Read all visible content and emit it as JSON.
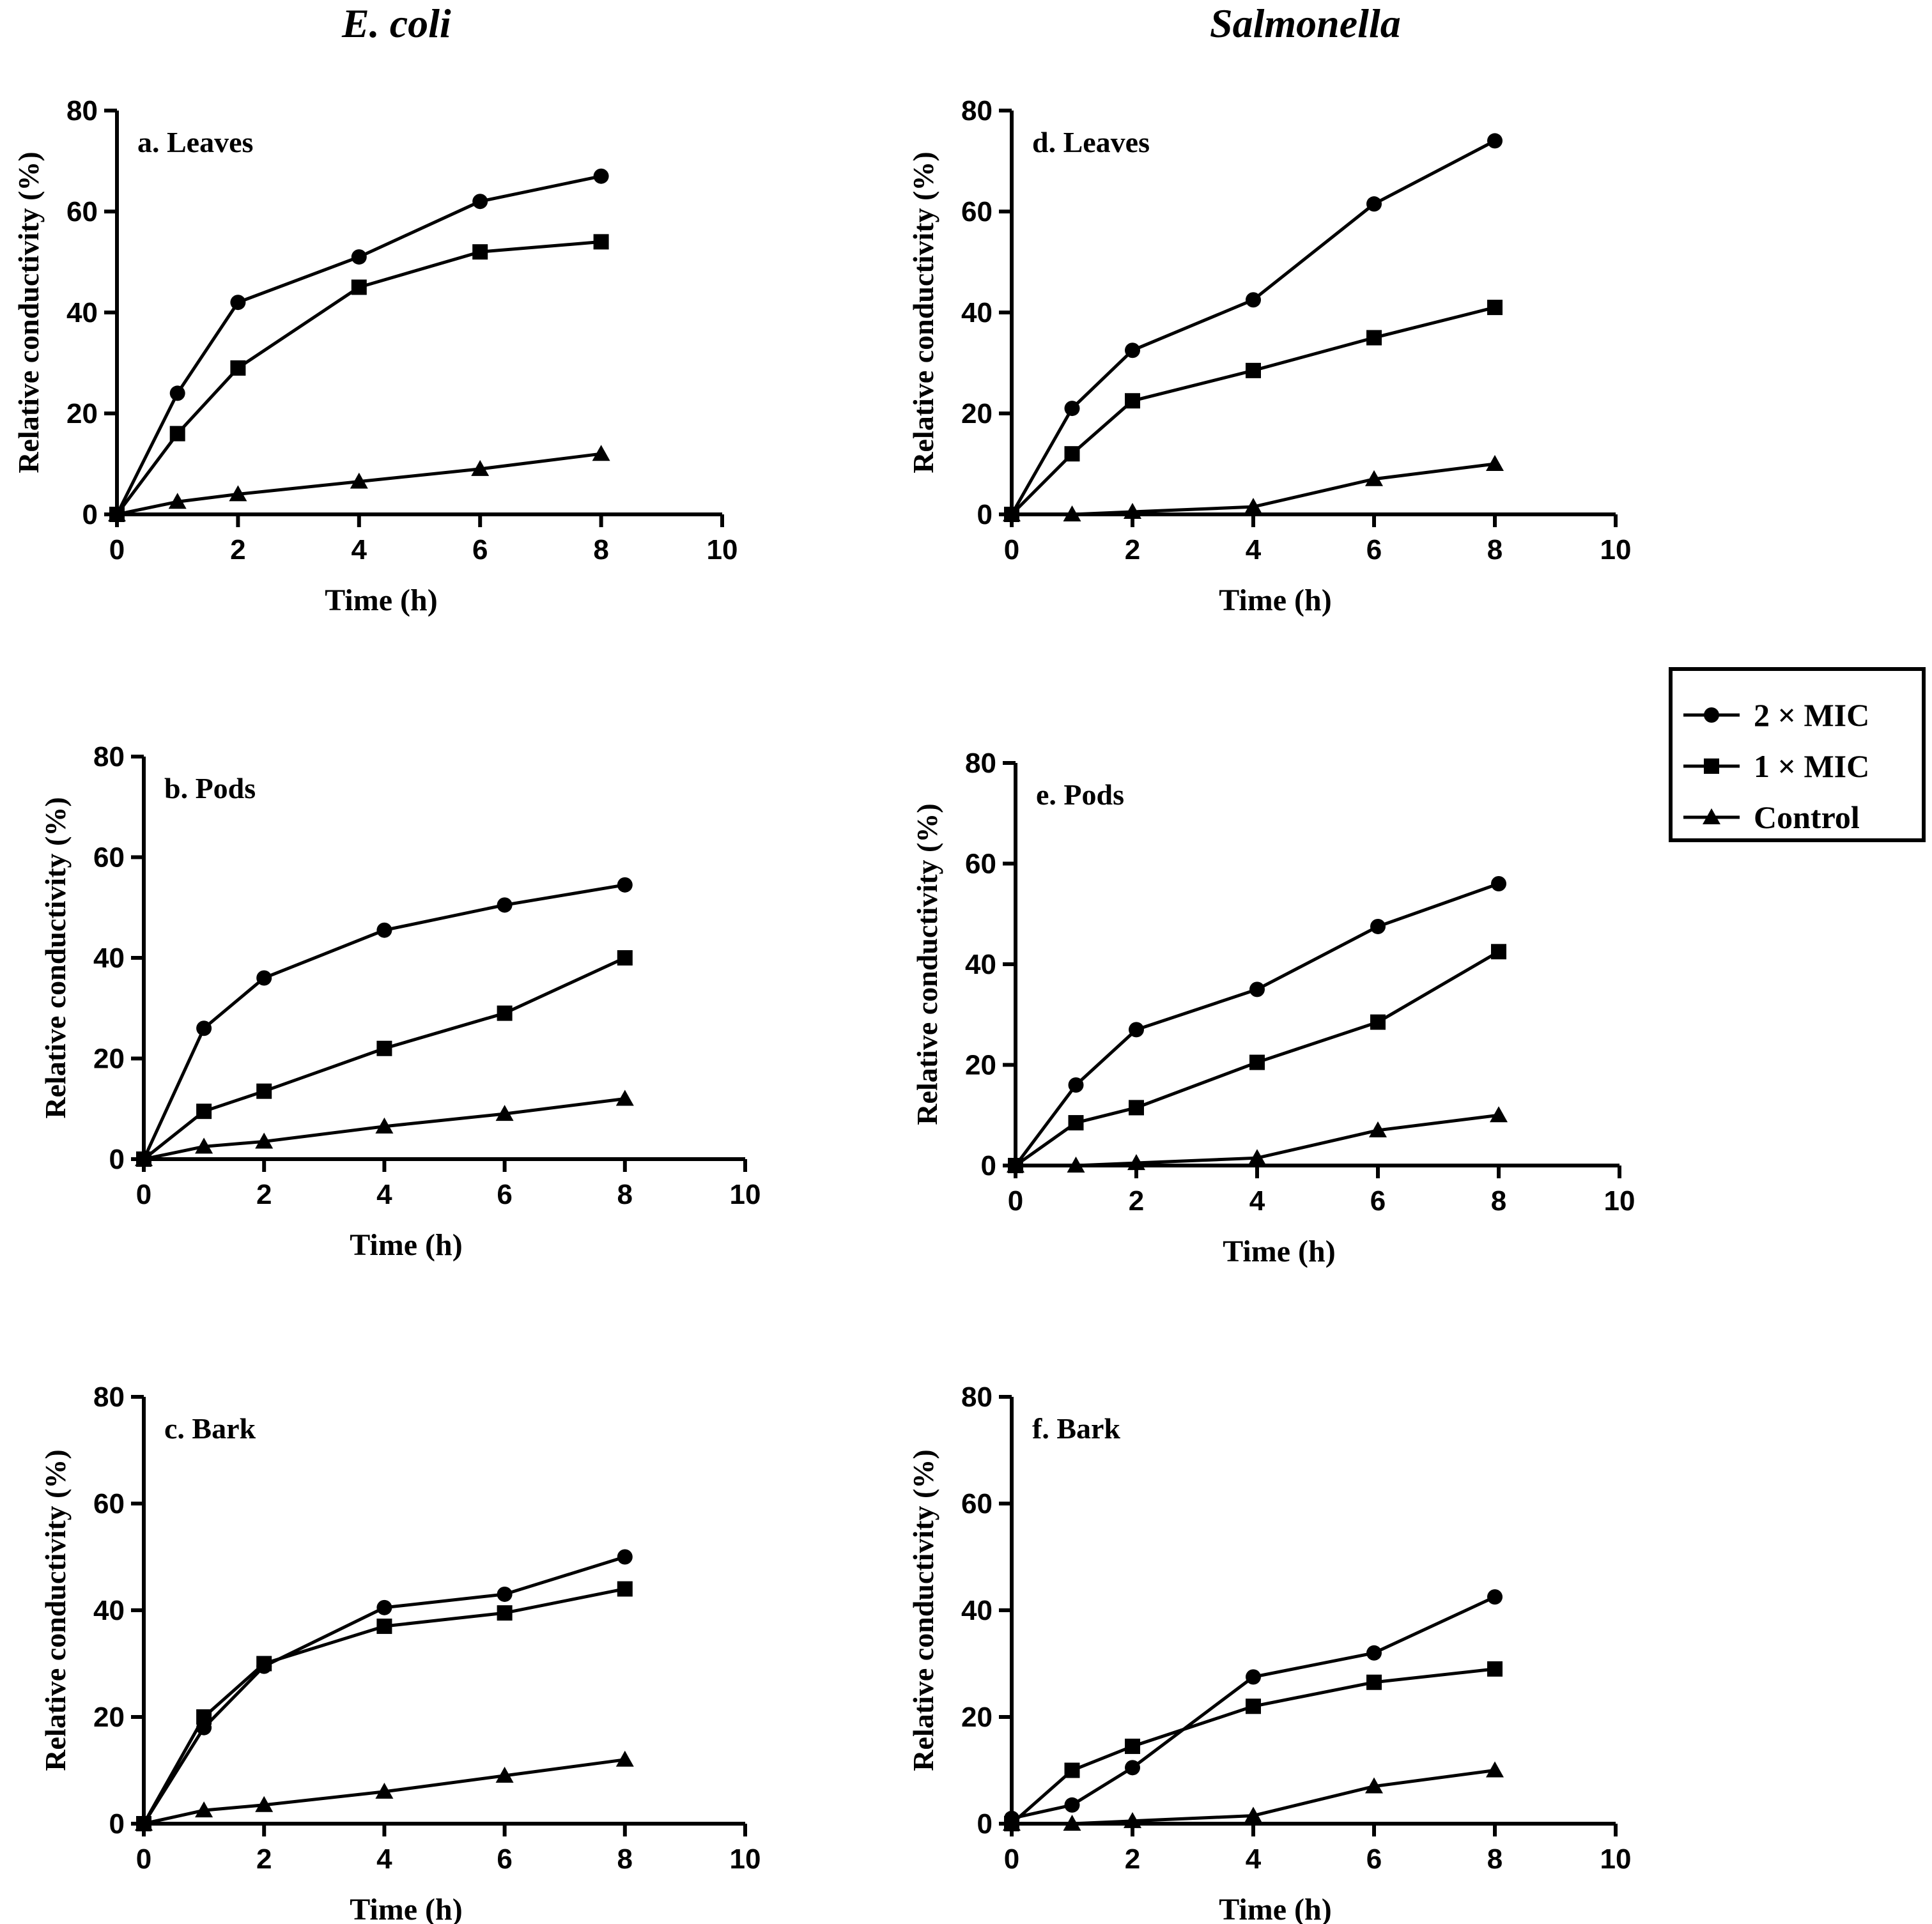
{
  "column_titles": {
    "left": "E. coli",
    "right": "Salmonella"
  },
  "legend": {
    "entries": [
      {
        "label": "2 × MIC",
        "marker": "circle"
      },
      {
        "label": "1 × MIC",
        "marker": "square"
      },
      {
        "label": "Control",
        "marker": "triangle"
      }
    ]
  },
  "chart_data": [
    {
      "id": "a",
      "type": "line",
      "organism": "E. coli",
      "title": "a. Leaves",
      "xlabel": "Time (h)",
      "ylabel": "Relative conductivity (%)",
      "xlim": [
        0,
        10
      ],
      "ylim": [
        0,
        80
      ],
      "xticks": [
        0,
        2,
        4,
        6,
        8,
        10
      ],
      "yticks": [
        0,
        20,
        40,
        60,
        80
      ],
      "x": [
        0,
        1,
        2,
        4,
        6,
        8
      ],
      "series": [
        {
          "name": "2 × MIC",
          "marker": "circle",
          "values": [
            0,
            24,
            42,
            51,
            62,
            67
          ]
        },
        {
          "name": "1 × MIC",
          "marker": "square",
          "values": [
            0,
            16,
            29,
            45,
            52,
            54
          ]
        },
        {
          "name": "Control",
          "marker": "triangle",
          "values": [
            0,
            2.5,
            4,
            6.5,
            9,
            12
          ]
        }
      ]
    },
    {
      "id": "b",
      "type": "line",
      "organism": "E. coli",
      "title": "b. Pods",
      "xlabel": "Time (h)",
      "ylabel": "Relative conductivity (%)",
      "xlim": [
        0,
        10
      ],
      "ylim": [
        0,
        80
      ],
      "xticks": [
        0,
        2,
        4,
        6,
        8,
        10
      ],
      "yticks": [
        0,
        20,
        40,
        60,
        80
      ],
      "x": [
        0,
        1,
        2,
        4,
        6,
        8
      ],
      "series": [
        {
          "name": "2 × MIC",
          "marker": "circle",
          "values": [
            0,
            26,
            36,
            45.5,
            50.5,
            54.5
          ]
        },
        {
          "name": "1 × MIC",
          "marker": "square",
          "values": [
            0,
            9.5,
            13.5,
            22,
            29,
            40
          ]
        },
        {
          "name": "Control",
          "marker": "triangle",
          "values": [
            0,
            2.5,
            3.5,
            6.5,
            9,
            12
          ]
        }
      ]
    },
    {
      "id": "c",
      "type": "line",
      "organism": "E. coli",
      "title": "c. Bark",
      "xlabel": "Time (h)",
      "ylabel": "Relative conductivity (%)",
      "xlim": [
        0,
        10
      ],
      "ylim": [
        0,
        80
      ],
      "xticks": [
        0,
        2,
        4,
        6,
        8,
        10
      ],
      "yticks": [
        0,
        20,
        40,
        60,
        80
      ],
      "x": [
        0,
        1,
        2,
        4,
        6,
        8
      ],
      "series": [
        {
          "name": "2 × MIC",
          "marker": "circle",
          "values": [
            0,
            18,
            29.5,
            40.5,
            43,
            50
          ]
        },
        {
          "name": "1 × MIC",
          "marker": "square",
          "values": [
            0,
            20,
            30,
            37,
            39.5,
            44
          ]
        },
        {
          "name": "Control",
          "marker": "triangle",
          "values": [
            0,
            2.5,
            3.5,
            6,
            9,
            12
          ]
        }
      ]
    },
    {
      "id": "d",
      "type": "line",
      "organism": "Salmonella",
      "title": "d. Leaves",
      "xlabel": "Time (h)",
      "ylabel": "Relative conductivity (%)",
      "xlim": [
        0,
        10
      ],
      "ylim": [
        0,
        80
      ],
      "xticks": [
        0,
        2,
        4,
        6,
        8,
        10
      ],
      "yticks": [
        0,
        20,
        40,
        60,
        80
      ],
      "x": [
        0,
        1,
        2,
        4,
        6,
        8
      ],
      "series": [
        {
          "name": "2 × MIC",
          "marker": "circle",
          "values": [
            0,
            21,
            32.5,
            42.5,
            61.5,
            74
          ]
        },
        {
          "name": "1 × MIC",
          "marker": "square",
          "values": [
            0,
            12,
            22.5,
            28.5,
            35,
            41
          ]
        },
        {
          "name": "Control",
          "marker": "triangle",
          "values": [
            0,
            0,
            0.5,
            1.5,
            7,
            10
          ]
        }
      ]
    },
    {
      "id": "e",
      "type": "line",
      "organism": "Salmonella",
      "title": "e. Pods",
      "xlabel": "Time (h)",
      "ylabel": "Relative conductivity (%)",
      "xlim": [
        0,
        10
      ],
      "ylim": [
        0,
        80
      ],
      "xticks": [
        0,
        2,
        4,
        6,
        8,
        10
      ],
      "yticks": [
        0,
        20,
        40,
        60,
        80
      ],
      "x": [
        0,
        1,
        2,
        4,
        6,
        8
      ],
      "series": [
        {
          "name": "2 × MIC",
          "marker": "circle",
          "values": [
            0,
            16,
            27,
            35,
            47.5,
            56
          ]
        },
        {
          "name": "1 × MIC",
          "marker": "square",
          "values": [
            0,
            8.5,
            11.5,
            20.5,
            28.5,
            42.5
          ]
        },
        {
          "name": "Control",
          "marker": "triangle",
          "values": [
            0,
            0,
            0.5,
            1.5,
            7,
            10
          ]
        }
      ]
    },
    {
      "id": "f",
      "type": "line",
      "organism": "Salmonella",
      "title": "f. Bark",
      "xlabel": "Time (h)",
      "ylabel": "Relative conductivity (%)",
      "xlim": [
        0,
        10
      ],
      "ylim": [
        0,
        80
      ],
      "xticks": [
        0,
        2,
        4,
        6,
        8,
        10
      ],
      "yticks": [
        0,
        20,
        40,
        60,
        80
      ],
      "x": [
        0,
        1,
        2,
        4,
        6,
        8
      ],
      "series": [
        {
          "name": "2 × MIC",
          "marker": "circle",
          "values": [
            1,
            3.5,
            10.5,
            27.5,
            32,
            42.5
          ]
        },
        {
          "name": "1 × MIC",
          "marker": "square",
          "values": [
            0,
            10,
            14.5,
            22,
            26.5,
            29
          ]
        },
        {
          "name": "Control",
          "marker": "triangle",
          "values": [
            0,
            0,
            0.5,
            1.5,
            7,
            10
          ]
        }
      ]
    }
  ]
}
